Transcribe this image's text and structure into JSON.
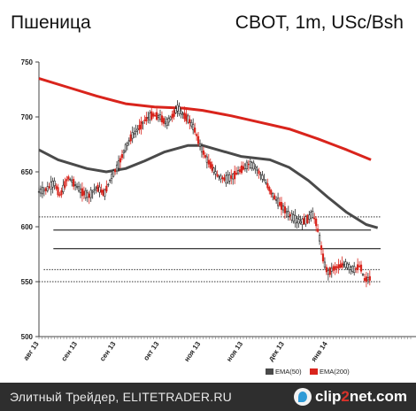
{
  "header": {
    "title": "Пшеница",
    "subtitle": "CBOT, 1m, USc/Bsh"
  },
  "footer": {
    "source": "Элитный Трейдер, ELITETRADER.RU",
    "logo": {
      "part1": "clip",
      "part2": "2",
      "part3": "net",
      "part4": ".com"
    }
  },
  "chart_data": {
    "type": "line",
    "title": "Пшеница",
    "subtitle": "CBOT, 1m, USc/Bsh",
    "ylim": [
      500,
      750
    ],
    "yticks": [
      500,
      550,
      600,
      650,
      700,
      750
    ],
    "xlim": [
      0,
      355
    ],
    "xticks": [
      {
        "label": "авг 13",
        "x": 0
      },
      {
        "label": "сен 13",
        "x": 40
      },
      {
        "label": "сен 13",
        "x": 80
      },
      {
        "label": "окт 13",
        "x": 125
      },
      {
        "label": "ноя 13",
        "x": 168
      },
      {
        "label": "ноя 13",
        "x": 212
      },
      {
        "label": "дек 13",
        "x": 255
      },
      {
        "label": "янв 14",
        "x": 300
      }
    ],
    "legend": [
      {
        "name": "EMA(50)",
        "color": "#4a4a4a"
      },
      {
        "name": "EMA(200)",
        "color": "#d9241c"
      }
    ],
    "legend_position": "bottom-right",
    "grid": false,
    "candle_up_color": "#2a2a2a",
    "candle_down_color": "#d9241c",
    "series": [
      {
        "name": "EMA(200)",
        "color": "#d9241c",
        "points": [
          [
            0,
            735
          ],
          [
            30,
            727
          ],
          [
            60,
            719
          ],
          [
            90,
            712
          ],
          [
            120,
            709
          ],
          [
            150,
            708
          ],
          [
            170,
            706
          ],
          [
            200,
            701
          ],
          [
            230,
            695
          ],
          [
            260,
            689
          ],
          [
            290,
            680
          ],
          [
            320,
            670
          ],
          [
            345,
            661
          ]
        ]
      },
      {
        "name": "EMA(50)",
        "color": "#4a4a4a",
        "points": [
          [
            0,
            670
          ],
          [
            20,
            661
          ],
          [
            50,
            653
          ],
          [
            70,
            650
          ],
          [
            90,
            653
          ],
          [
            110,
            660
          ],
          [
            130,
            668
          ],
          [
            155,
            674
          ],
          [
            170,
            674
          ],
          [
            190,
            669
          ],
          [
            210,
            664
          ],
          [
            240,
            661
          ],
          [
            260,
            654
          ],
          [
            280,
            642
          ],
          [
            300,
            627
          ],
          [
            320,
            613
          ],
          [
            340,
            602
          ],
          [
            352,
            599
          ]
        ]
      },
      {
        "name": "price",
        "type": "candles",
        "points": [
          [
            0,
            632
          ],
          [
            8,
            634
          ],
          [
            16,
            640
          ],
          [
            22,
            628
          ],
          [
            30,
            645
          ],
          [
            36,
            640
          ],
          [
            44,
            632
          ],
          [
            52,
            628
          ],
          [
            60,
            636
          ],
          [
            68,
            630
          ],
          [
            75,
            645
          ],
          [
            82,
            655
          ],
          [
            90,
            672
          ],
          [
            96,
            682
          ],
          [
            104,
            690
          ],
          [
            110,
            697
          ],
          [
            118,
            702
          ],
          [
            126,
            700
          ],
          [
            132,
            694
          ],
          [
            138,
            700
          ],
          [
            144,
            708
          ],
          [
            150,
            702
          ],
          [
            156,
            697
          ],
          [
            162,
            688
          ],
          [
            168,
            673
          ],
          [
            174,
            662
          ],
          [
            180,
            654
          ],
          [
            186,
            646
          ],
          [
            194,
            643
          ],
          [
            202,
            646
          ],
          [
            210,
            652
          ],
          [
            218,
            657
          ],
          [
            224,
            655
          ],
          [
            230,
            648
          ],
          [
            236,
            640
          ],
          [
            242,
            630
          ],
          [
            248,
            623
          ],
          [
            254,
            617
          ],
          [
            260,
            611
          ],
          [
            266,
            607
          ],
          [
            272,
            604
          ],
          [
            278,
            606
          ],
          [
            284,
            612
          ],
          [
            288,
            604
          ],
          [
            292,
            588
          ],
          [
            296,
            568
          ],
          [
            300,
            558
          ],
          [
            306,
            562
          ],
          [
            312,
            564
          ],
          [
            318,
            566
          ],
          [
            324,
            562
          ],
          [
            328,
            561
          ],
          [
            334,
            565
          ],
          [
            338,
            552
          ],
          [
            344,
            553
          ]
        ]
      }
    ],
    "reference_lines": [
      {
        "y": 609,
        "x0": 0,
        "x1": 355,
        "color": "#333333",
        "style": "dotted"
      },
      {
        "y": 597,
        "x0": 15,
        "x1": 345,
        "color": "#000000",
        "style": "solid"
      },
      {
        "y": 580,
        "x0": 15,
        "x1": 355,
        "color": "#000000",
        "style": "solid"
      },
      {
        "y": 561,
        "x0": 5,
        "x1": 355,
        "color": "#333333",
        "style": "dotted"
      },
      {
        "y": 550,
        "x0": 0,
        "x1": 355,
        "color": "#333333",
        "style": "dotted"
      }
    ]
  }
}
